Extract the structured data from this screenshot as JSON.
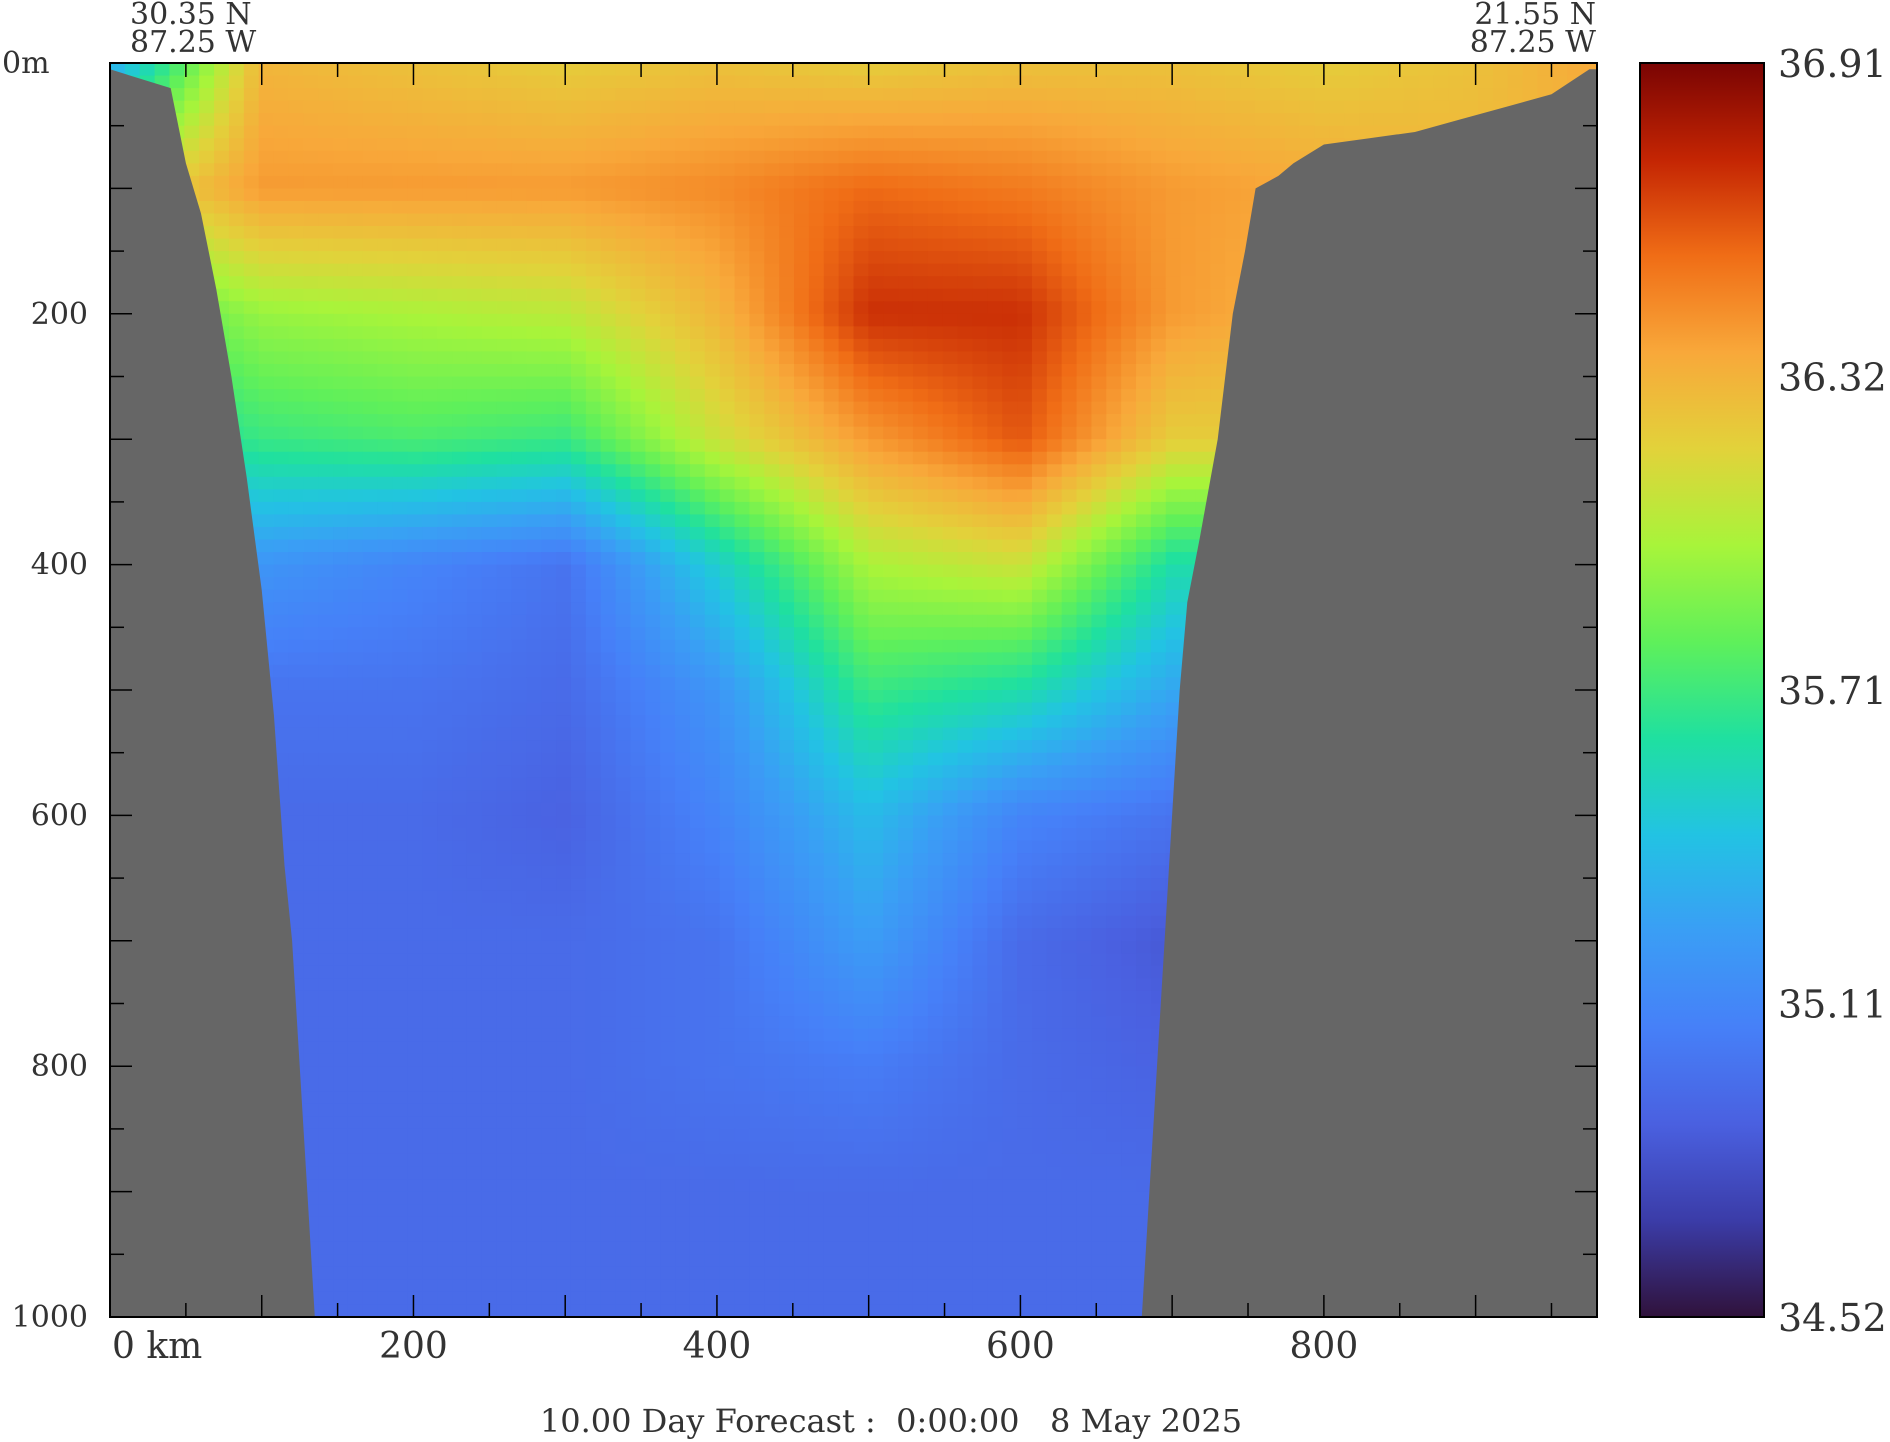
{
  "chart_data": {
    "type": "heatmap",
    "title": "10.00 Day Forecast :  0:00:00   8 May 2025",
    "start_location": {
      "lat": "30.35 N",
      "lon": "87.25 W"
    },
    "end_location": {
      "lat": "21.55 N",
      "lon": "87.25 W"
    },
    "x_axis": {
      "unit_label": "km",
      "range": [
        0,
        980
      ],
      "ticks": [
        0,
        200,
        400,
        600,
        800
      ],
      "tick_labels": [
        "0 km",
        "200",
        "400",
        "600",
        "800"
      ]
    },
    "y_axis": {
      "range": [
        0,
        1000
      ],
      "reversed": true,
      "ticks": [
        0,
        200,
        400,
        600,
        800,
        1000
      ],
      "tick_labels": [
        "0m",
        "200",
        "400",
        "600",
        "800",
        "1000"
      ]
    },
    "colorbar": {
      "range": [
        34.52,
        36.91
      ],
      "tick_labels": [
        "36.91",
        "36.32",
        "35.71",
        "35.11",
        "34.52"
      ],
      "colors": [
        "#7a0403",
        "#c42503",
        "#f06d16",
        "#f8a83a",
        "#e2d23a",
        "#a8f43a",
        "#5ff05a",
        "#1fe0a0",
        "#22c3e3",
        "#3a9ef5",
        "#4680f8",
        "#4a60e0",
        "#3b3ca8",
        "#30123b"
      ]
    },
    "land_color": "#666666",
    "seafloor_depth_m": [
      [
        0,
        5
      ],
      [
        40,
        20
      ],
      [
        50,
        80
      ],
      [
        60,
        120
      ],
      [
        70,
        180
      ],
      [
        80,
        250
      ],
      [
        90,
        330
      ],
      [
        100,
        420
      ],
      [
        108,
        520
      ],
      [
        115,
        640
      ],
      [
        120,
        700
      ],
      [
        125,
        800
      ],
      [
        130,
        900
      ],
      [
        135,
        1000
      ],
      [
        680,
        1000
      ],
      [
        685,
        900
      ],
      [
        690,
        800
      ],
      [
        695,
        700
      ],
      [
        700,
        600
      ],
      [
        705,
        500
      ],
      [
        710,
        430
      ],
      [
        718,
        380
      ],
      [
        730,
        300
      ],
      [
        740,
        200
      ],
      [
        748,
        150
      ],
      [
        755,
        100
      ],
      [
        770,
        90
      ],
      [
        780,
        80
      ],
      [
        800,
        65
      ],
      [
        830,
        60
      ],
      [
        860,
        55
      ],
      [
        890,
        45
      ],
      [
        920,
        35
      ],
      [
        950,
        25
      ],
      [
        975,
        5
      ]
    ],
    "salinity_field": {
      "description_levels_m": [
        0,
        100,
        200,
        300,
        400,
        500,
        600,
        700,
        800,
        900,
        1000
      ],
      "x_km": [
        0,
        100,
        200,
        300,
        400,
        500,
        600,
        700,
        800,
        900,
        975
      ],
      "values": [
        [
          35.3,
          36.3,
          36.25,
          36.2,
          36.25,
          36.2,
          36.25,
          36.25,
          36.2,
          36.25,
          36.35
        ],
        [
          36.1,
          36.4,
          36.4,
          36.4,
          36.45,
          36.55,
          36.5,
          36.4,
          36.35,
          36.3,
          36.3
        ],
        [
          35.7,
          35.95,
          36.0,
          36.05,
          36.3,
          36.7,
          36.7,
          36.4,
          36.3,
          36.3,
          36.3
        ],
        [
          35.5,
          35.7,
          35.75,
          35.7,
          36.1,
          36.4,
          36.6,
          36.2,
          36.2,
          36.2,
          36.2
        ],
        [
          35.2,
          35.2,
          35.1,
          35.0,
          35.5,
          36.0,
          36.1,
          35.6,
          35.6,
          35.6,
          35.6
        ],
        [
          35.0,
          35.0,
          35.0,
          34.95,
          35.2,
          35.7,
          35.6,
          35.3,
          35.3,
          35.3,
          35.3
        ],
        [
          34.95,
          34.95,
          34.95,
          34.9,
          35.1,
          35.4,
          35.1,
          35.0,
          35.0,
          35.0,
          35.0
        ],
        [
          34.9,
          34.95,
          34.95,
          34.95,
          35.0,
          35.25,
          34.95,
          34.85,
          34.9,
          34.9,
          34.9
        ],
        [
          34.9,
          34.95,
          34.95,
          34.95,
          35.0,
          35.05,
          34.95,
          34.9,
          34.9,
          34.9,
          34.9
        ],
        [
          34.9,
          34.95,
          34.95,
          34.95,
          34.95,
          34.95,
          34.95,
          34.95,
          34.9,
          34.9,
          34.9
        ],
        [
          34.9,
          34.95,
          34.95,
          34.95,
          34.95,
          34.95,
          34.95,
          34.95,
          34.9,
          34.9,
          34.9
        ]
      ]
    }
  }
}
